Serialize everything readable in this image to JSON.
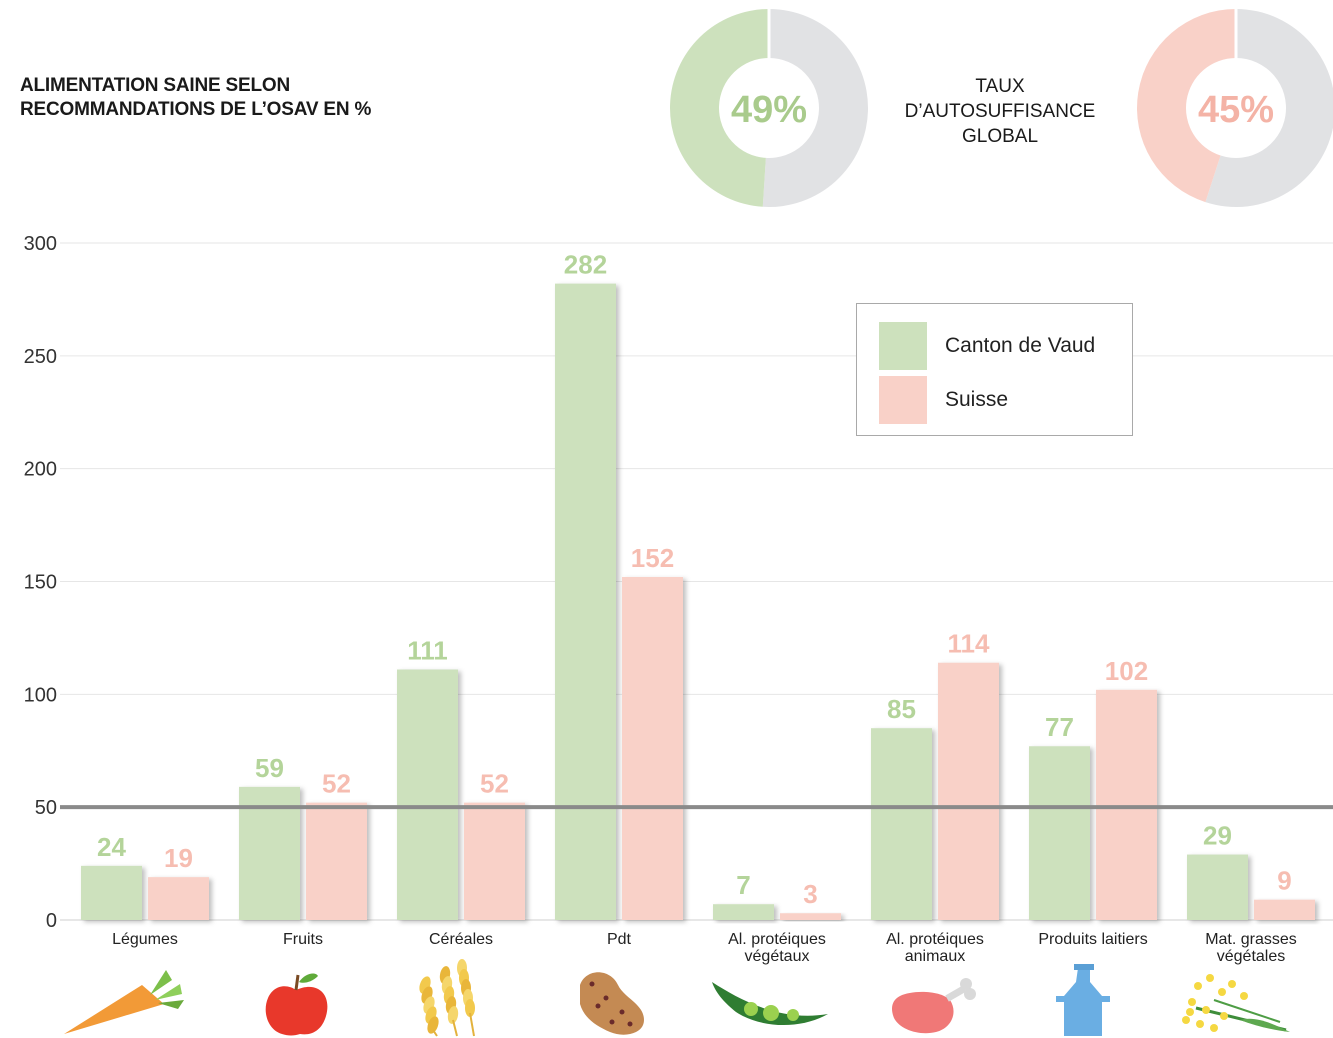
{
  "title": {
    "line1": "ALIMENTATION SAINE SELON",
    "line2": "RECOMMANDATIONS DE L’OSAV EN %"
  },
  "donut_label": {
    "line1": "TAUX",
    "line2": "D’AUTOSUFFISANCE",
    "line3": "GLOBAL"
  },
  "donuts": [
    {
      "label": "49%",
      "value": 49,
      "color": "#cde1bd",
      "rest_color": "#e1e2e4",
      "text_color": "#a9cb8c"
    },
    {
      "label": "45%",
      "value": 45,
      "color": "#f9d1c8",
      "rest_color": "#e1e2e4",
      "text_color": "#f4b3a6"
    }
  ],
  "colors": {
    "vaud": "#cde1bd",
    "suisse": "#f9d1c8",
    "vaud_label": "#b4d49a",
    "suisse_label": "#f6bdb1",
    "reference_line": "#8a8a8a",
    "grid": "#e6e6e6"
  },
  "legend": {
    "vaud": "Canton de Vaud",
    "suisse": "Suisse"
  },
  "chart_data": {
    "type": "bar",
    "categories": [
      [
        "Légumes"
      ],
      [
        "Fruits"
      ],
      [
        "Céréales"
      ],
      [
        "Pdt"
      ],
      [
        "Al. protéiques",
        "végétaux"
      ],
      [
        "Al. protéiques",
        "animaux"
      ],
      [
        "Produits laitiers"
      ],
      [
        "Mat. grasses",
        "végétales"
      ]
    ],
    "series": [
      {
        "name": "Canton de Vaud",
        "values": [
          24,
          59,
          111,
          282,
          7,
          85,
          77,
          29
        ]
      },
      {
        "name": "Suisse",
        "values": [
          19,
          52,
          52,
          152,
          3,
          114,
          102,
          9
        ]
      }
    ],
    "ylim": [
      0,
      300
    ],
    "yticks": [
      0,
      50,
      100,
      150,
      200,
      250,
      300
    ],
    "reference_line": 50,
    "grid": true,
    "legend_position": "top-right",
    "icons": [
      "carrot-icon",
      "apple-icon",
      "wheat-icon",
      "potato-icon",
      "pea-pod-icon",
      "meat-icon",
      "milk-can-icon",
      "rapeseed-icon"
    ]
  }
}
